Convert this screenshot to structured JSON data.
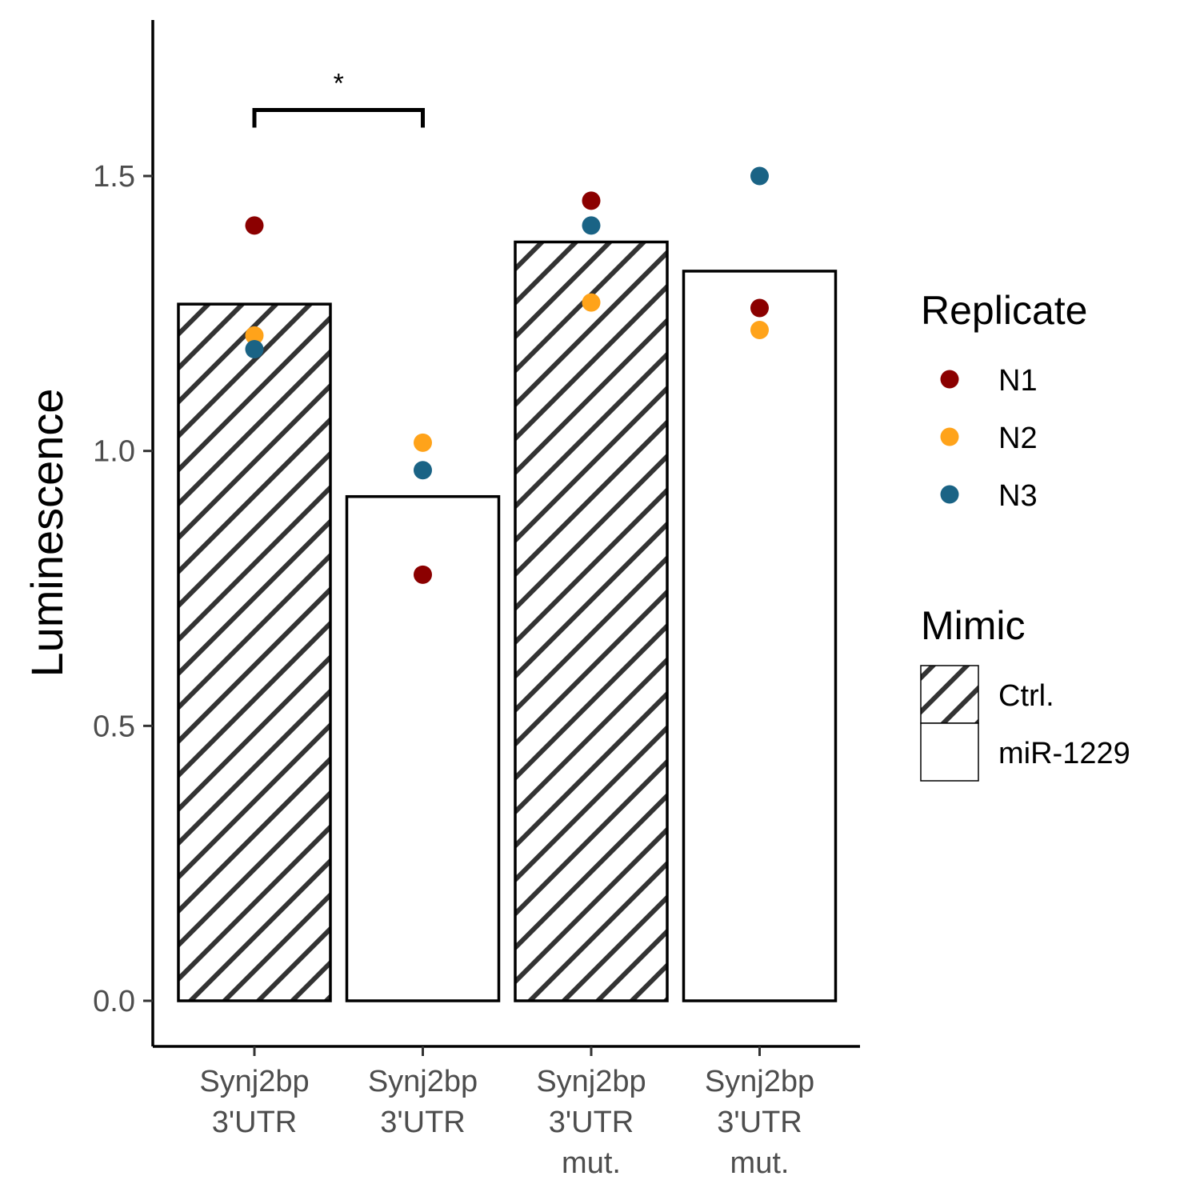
{
  "chart_data": {
    "type": "bar",
    "ylabel": "Luminescence",
    "xlabel": "",
    "ylim": [
      -0.08,
      1.8
    ],
    "yticks": [
      0.0,
      0.5,
      1.0,
      1.5
    ],
    "ytick_labels": [
      "0.0",
      "0.5",
      "1.0",
      "1.5"
    ],
    "grid": false,
    "categories": [
      {
        "lines": [
          "Synj2bp",
          "3'UTR"
        ],
        "mimic": "Ctrl."
      },
      {
        "lines": [
          "Synj2bp",
          "3'UTR"
        ],
        "mimic": "miR-1229"
      },
      {
        "lines": [
          "Synj2bp",
          "3'UTR",
          "mut."
        ],
        "mimic": "Ctrl."
      },
      {
        "lines": [
          "Synj2bp",
          "3'UTR",
          "mut."
        ],
        "mimic": "miR-1229"
      }
    ],
    "bar_values": [
      1.267,
      0.917,
      1.38,
      1.327
    ],
    "replicates": [
      {
        "name": "N1",
        "color": "#8b0000",
        "values": [
          1.41,
          0.775,
          1.455,
          1.26
        ]
      },
      {
        "name": "N2",
        "color": "#ffa31a",
        "values": [
          1.21,
          1.015,
          1.27,
          1.22
        ]
      },
      {
        "name": "N3",
        "color": "#1a6385",
        "values": [
          1.185,
          0.965,
          1.41,
          1.5
        ]
      }
    ],
    "significance": {
      "from": 0,
      "to": 1,
      "label": "*",
      "y": 1.62
    },
    "legends": [
      {
        "title": "Replicate",
        "type": "points",
        "items": [
          {
            "label": "N1",
            "color": "#8b0000"
          },
          {
            "label": "N2",
            "color": "#ffa31a"
          },
          {
            "label": "N3",
            "color": "#1a6385"
          }
        ]
      },
      {
        "title": "Mimic",
        "type": "fill",
        "items": [
          {
            "label": "Ctrl.",
            "pattern": "stripes"
          },
          {
            "label": "miR-1229",
            "pattern": "none"
          }
        ]
      }
    ],
    "legend_position": "right"
  }
}
